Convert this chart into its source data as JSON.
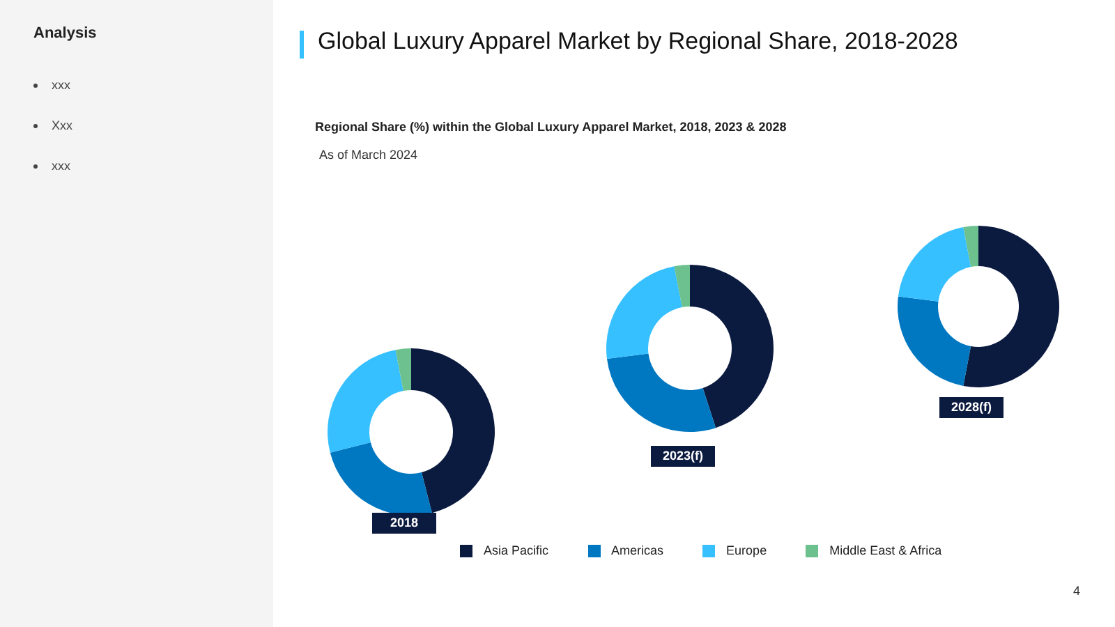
{
  "chart_data": [
    {
      "type": "other",
      "title": "Analysis",
      "annotations": [
        "xxx",
        "Xxx",
        "xxx"
      ]
    },
    {
      "type": "donut",
      "title": "Global Luxury Apparel Market by Regional Share, 2018-2028",
      "subtitle": "Regional Share (%) within the Global Luxury Apparel Market, 2018, 2023 & 2028",
      "annotations": [
        "As of March 2024"
      ],
      "xlabel": "2018",
      "categories": [
        null,
        null,
        null,
        null
      ],
      "values": [
        46,
        25,
        26,
        3
      ],
      "colors": [
        "#0b1a3f",
        "#0078c1",
        "#36c0ff",
        "#6cc18e"
      ]
    },
    {
      "type": "donut",
      "xlabel": "2023(f)",
      "categories": [
        "Asia Pacific",
        "Americas",
        "Europe",
        "Middle East & Africa"
      ],
      "values": [
        45,
        28,
        24,
        3
      ],
      "colors": [
        "#0b1a3f",
        "#0078c1",
        "#36c0ff",
        "#6cc18e"
      ],
      "legend": "bottom"
    },
    {
      "type": "donut",
      "xlabel": "2028(f)",
      "categories": [
        null,
        null,
        null,
        null
      ],
      "values": [
        53,
        24,
        20,
        3
      ],
      "colors": [
        "#0b1a3f",
        "#0078c1",
        "#36c0ff",
        "#6cc18e"
      ],
      "annotations": [
        "4"
      ]
    }
  ]
}
